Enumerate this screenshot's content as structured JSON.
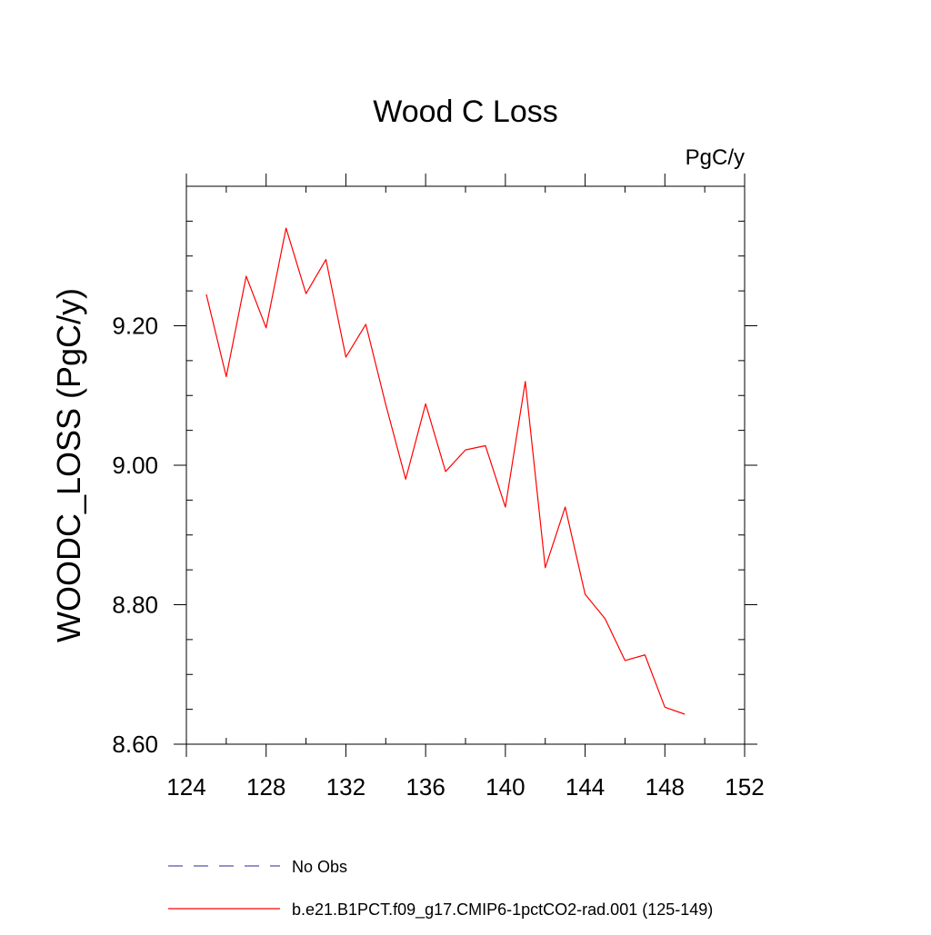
{
  "chart_data": {
    "type": "line",
    "title": "Wood C Loss",
    "units_label": "PgC/y",
    "ylabel": "WOODC_LOSS  (PgC/y)",
    "xlabel": "",
    "xlim": [
      124,
      152
    ],
    "ylim": [
      8.6,
      9.4
    ],
    "x_ticks": [
      124,
      128,
      132,
      136,
      140,
      144,
      148,
      152
    ],
    "x_tick_labels": [
      "124",
      "128",
      "132",
      "136",
      "140",
      "144",
      "148",
      "152"
    ],
    "y_ticks": [
      8.6,
      8.8,
      9.0,
      9.2
    ],
    "y_tick_labels": [
      "8.60",
      "8.80",
      "9.00",
      "9.20"
    ],
    "y_minor_step": 0.05,
    "x_minor_step": 2,
    "grid": false,
    "series": [
      {
        "name": "b.e21.B1PCT.f09_g17.CMIP6-1pctCO2-rad.001 (125-149)",
        "color": "#ff0000",
        "x": [
          125,
          126,
          127,
          128,
          129,
          130,
          131,
          132,
          133,
          134,
          135,
          136,
          137,
          138,
          139,
          140,
          141,
          142,
          143,
          144,
          145,
          146,
          147,
          148,
          149
        ],
        "y": [
          9.245,
          9.127,
          9.271,
          9.197,
          9.34,
          9.246,
          9.295,
          9.155,
          9.202,
          9.087,
          8.98,
          9.088,
          8.991,
          9.022,
          9.028,
          8.94,
          9.12,
          8.853,
          8.94,
          8.815,
          8.78,
          8.72,
          8.728,
          8.653,
          8.643
        ]
      }
    ],
    "legend": {
      "placement": "bottom",
      "entries": [
        {
          "label": "No Obs",
          "color": "#5555aa",
          "style": "dashed"
        },
        {
          "label": "b.e21.B1PCT.f09_g17.CMIP6-1pctCO2-rad.001 (125-149)",
          "color": "#ff0000",
          "style": "solid"
        }
      ]
    }
  }
}
